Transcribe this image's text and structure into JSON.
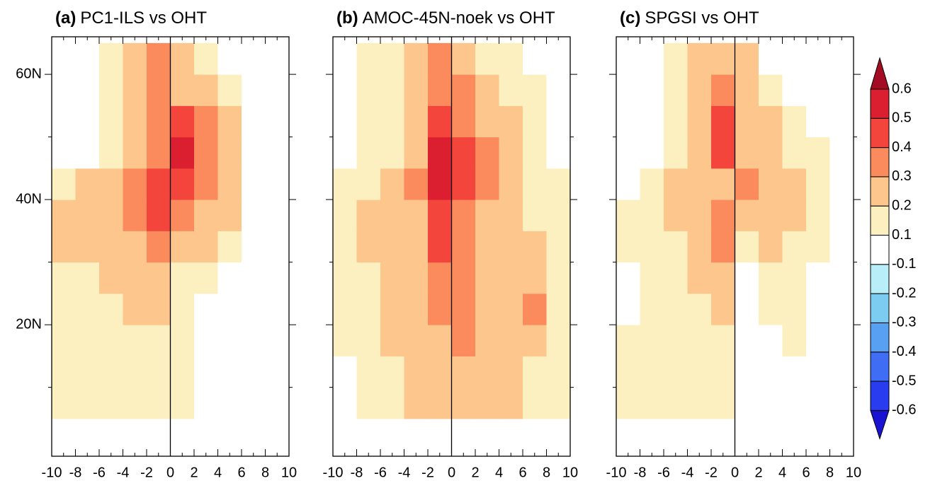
{
  "chart_data": {
    "type": "heatmap",
    "xlim": [
      -10,
      10
    ],
    "ylim": [
      -1,
      66
    ],
    "xticks": [
      -10,
      -8,
      -6,
      -4,
      -2,
      0,
      2,
      4,
      6,
      8,
      10
    ],
    "yticks": [
      {
        "value": 20,
        "label": "20N"
      },
      {
        "value": 40,
        "label": "40N"
      },
      {
        "value": 60,
        "label": "60N"
      }
    ],
    "x_edges": [
      -10,
      -8,
      -6,
      -4,
      -2,
      0,
      2,
      4,
      6,
      8,
      10
    ],
    "y_edges": [
      5,
      10,
      15,
      20,
      25,
      30,
      35,
      40,
      45,
      50,
      55,
      60,
      65
    ],
    "levels": [
      -0.6,
      -0.5,
      -0.4,
      -0.3,
      -0.2,
      -0.1,
      0.1,
      0.2,
      0.3,
      0.4,
      0.5,
      0.6
    ],
    "colors": [
      "#1a14d2",
      "#2a3cf0",
      "#3f6ef5",
      "#57a0f2",
      "#7ccbf0",
      "#b8eef8",
      "#ffffff",
      "#fdf0c0",
      "#fcc68c",
      "#fb8a5c",
      "#f4453c",
      "#dc1f30",
      "#a30c22"
    ],
    "panels": [
      {
        "label": "(a)",
        "title": "PC1-ILS vs OHT",
        "values": [
          [
            0.15,
            0.15,
            0.15,
            0.15,
            0.15,
            0.15,
            0,
            0,
            0,
            0
          ],
          [
            0.15,
            0.15,
            0.15,
            0.15,
            0.15,
            0.15,
            0,
            0,
            0,
            0
          ],
          [
            0.15,
            0.15,
            0.15,
            0.15,
            0.15,
            0.15,
            0,
            0,
            0,
            0
          ],
          [
            0.15,
            0.15,
            0.15,
            0.25,
            0.25,
            0.15,
            0,
            0,
            0,
            0
          ],
          [
            0.15,
            0.15,
            0.25,
            0.25,
            0.25,
            0.15,
            0.15,
            0,
            0,
            0
          ],
          [
            0.25,
            0.25,
            0.25,
            0.25,
            0.35,
            0.25,
            0.25,
            0.15,
            0,
            0
          ],
          [
            0.25,
            0.25,
            0.25,
            0.35,
            0.45,
            0.35,
            0.25,
            0.25,
            0,
            0
          ],
          [
            0.15,
            0.25,
            0.25,
            0.35,
            0.45,
            0.45,
            0.35,
            0.25,
            0,
            0
          ],
          [
            0,
            0,
            0.15,
            0.25,
            0.35,
            0.55,
            0.35,
            0.25,
            0,
            0
          ],
          [
            0,
            0,
            0.15,
            0.25,
            0.35,
            0.45,
            0.35,
            0.25,
            0,
            0
          ],
          [
            0,
            0,
            0.15,
            0.25,
            0.35,
            0.25,
            0.25,
            0.15,
            0,
            0
          ],
          [
            0,
            0,
            0.15,
            0.25,
            0.35,
            0.25,
            0.15,
            0,
            0,
            0
          ]
        ]
      },
      {
        "label": "(b)",
        "title": "AMOC-45N-noek vs OHT",
        "values": [
          [
            0,
            0.15,
            0.15,
            0.25,
            0.25,
            0.25,
            0.25,
            0.25,
            0.15,
            0.15
          ],
          [
            0,
            0.15,
            0.15,
            0.25,
            0.25,
            0.25,
            0.25,
            0.25,
            0.15,
            0.15
          ],
          [
            0.15,
            0.15,
            0.25,
            0.25,
            0.25,
            0.35,
            0.25,
            0.25,
            0.25,
            0.15
          ],
          [
            0.15,
            0.15,
            0.25,
            0.25,
            0.35,
            0.35,
            0.25,
            0.25,
            0.35,
            0.15
          ],
          [
            0.15,
            0.15,
            0.25,
            0.25,
            0.35,
            0.35,
            0.25,
            0.25,
            0.25,
            0.15
          ],
          [
            0.15,
            0.25,
            0.25,
            0.25,
            0.45,
            0.35,
            0.25,
            0.25,
            0.25,
            0.15
          ],
          [
            0.15,
            0.25,
            0.25,
            0.25,
            0.45,
            0.35,
            0.25,
            0.25,
            0.15,
            0.15
          ],
          [
            0.15,
            0.15,
            0.25,
            0.35,
            0.55,
            0.45,
            0.35,
            0.25,
            0.15,
            0.15
          ],
          [
            0,
            0.15,
            0.15,
            0.25,
            0.55,
            0.45,
            0.35,
            0.25,
            0.15,
            0
          ],
          [
            0,
            0.15,
            0.15,
            0.25,
            0.45,
            0.35,
            0.25,
            0.25,
            0.15,
            0
          ],
          [
            0,
            0.15,
            0.15,
            0.25,
            0.35,
            0.35,
            0.25,
            0.15,
            0.15,
            0
          ],
          [
            0,
            0.15,
            0.15,
            0.25,
            0.35,
            0.25,
            0.15,
            0.15,
            0,
            0
          ]
        ]
      },
      {
        "label": "(c)",
        "title": "SPGSI vs OHT",
        "values": [
          [
            0.15,
            0.15,
            0.15,
            0.15,
            0.15,
            0,
            0,
            0,
            0,
            0
          ],
          [
            0.15,
            0.15,
            0.15,
            0.15,
            0.15,
            0,
            0,
            0,
            0,
            0
          ],
          [
            0.15,
            0.15,
            0.15,
            0.15,
            0.15,
            0,
            0,
            0.15,
            0,
            0
          ],
          [
            0,
            0.15,
            0.15,
            0.15,
            0.25,
            0,
            0.15,
            0.15,
            0,
            0
          ],
          [
            0,
            0.15,
            0.15,
            0.25,
            0.25,
            0,
            0.15,
            0.15,
            0,
            0
          ],
          [
            0.15,
            0.15,
            0.15,
            0.25,
            0.35,
            0.15,
            0.25,
            0.15,
            0.15,
            0
          ],
          [
            0.15,
            0.15,
            0.25,
            0.25,
            0.35,
            0.25,
            0.25,
            0.25,
            0.15,
            0
          ],
          [
            0,
            0.15,
            0.25,
            0.25,
            0.25,
            0.35,
            0.25,
            0.25,
            0.15,
            0
          ],
          [
            0,
            0,
            0.15,
            0.25,
            0.45,
            0.25,
            0.25,
            0.15,
            0.15,
            0
          ],
          [
            0,
            0,
            0.15,
            0.25,
            0.45,
            0.25,
            0.25,
            0.15,
            0,
            0
          ],
          [
            0,
            0,
            0.15,
            0.25,
            0.35,
            0.25,
            0.15,
            0,
            0,
            0
          ],
          [
            0,
            0,
            0.15,
            0.25,
            0.25,
            0.25,
            0,
            0,
            0,
            0
          ]
        ]
      }
    ]
  }
}
